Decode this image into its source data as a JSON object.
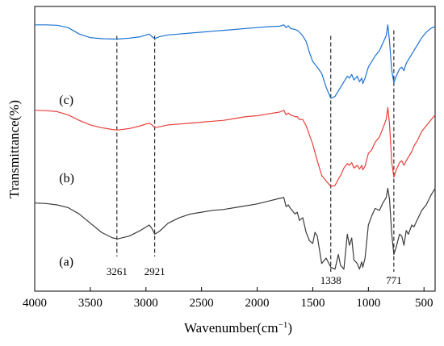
{
  "chart_data": {
    "type": "line",
    "xlabel": "Wavenumber(cm",
    "xlabel_unit_sup": "−1",
    "xlabel_close": ")",
    "ylabel": "Transmittance(%)",
    "xlim": [
      4000,
      400
    ],
    "x_reversed": true,
    "y_ticks_shown": false,
    "grid": false,
    "xticks": [
      4000,
      3500,
      3000,
      2500,
      2000,
      1500,
      1000,
      500
    ],
    "xtick_labels": [
      "4000",
      "3500",
      "3000",
      "2500",
      "2000",
      "1500",
      "1000",
      "500"
    ],
    "series": [
      {
        "name": "(a)",
        "color": "#3c3c3c",
        "label_at": [
          3780,
          10
        ],
        "points": [
          [
            4000,
            74
          ],
          [
            3900,
            73.5
          ],
          [
            3800,
            72
          ],
          [
            3700,
            69
          ],
          [
            3600,
            62
          ],
          [
            3500,
            52
          ],
          [
            3400,
            42
          ],
          [
            3300,
            36
          ],
          [
            3250,
            35
          ],
          [
            3150,
            38
          ],
          [
            3050,
            44
          ],
          [
            2970,
            50
          ],
          [
            2945,
            46
          ],
          [
            2921,
            40
          ],
          [
            2880,
            43
          ],
          [
            2800,
            52
          ],
          [
            2700,
            58
          ],
          [
            2600,
            62
          ],
          [
            2500,
            64
          ],
          [
            2400,
            66
          ],
          [
            2300,
            67
          ],
          [
            2200,
            69
          ],
          [
            2100,
            71
          ],
          [
            2000,
            73
          ],
          [
            1900,
            76
          ],
          [
            1800,
            79
          ],
          [
            1760,
            80
          ],
          [
            1740,
            70
          ],
          [
            1720,
            72
          ],
          [
            1700,
            68
          ],
          [
            1660,
            62
          ],
          [
            1640,
            64
          ],
          [
            1620,
            55
          ],
          [
            1590,
            58
          ],
          [
            1560,
            42
          ],
          [
            1530,
            33
          ],
          [
            1500,
            30
          ],
          [
            1480,
            42
          ],
          [
            1460,
            38
          ],
          [
            1420,
            8
          ],
          [
            1380,
            14
          ],
          [
            1338,
            4
          ],
          [
            1300,
            2
          ],
          [
            1270,
            18
          ],
          [
            1250,
            6
          ],
          [
            1220,
            2
          ],
          [
            1190,
            40
          ],
          [
            1170,
            28
          ],
          [
            1150,
            36
          ],
          [
            1130,
            12
          ],
          [
            1100,
            8
          ],
          [
            1080,
            2
          ],
          [
            1060,
            10
          ],
          [
            1050,
            4
          ],
          [
            1030,
            14
          ],
          [
            1000,
            50
          ],
          [
            970,
            60
          ],
          [
            940,
            68
          ],
          [
            900,
            66
          ],
          [
            870,
            74
          ],
          [
            840,
            80
          ],
          [
            825,
            90
          ],
          [
            810,
            78
          ],
          [
            790,
            40
          ],
          [
            771,
            18
          ],
          [
            750,
            26
          ],
          [
            720,
            40
          ],
          [
            700,
            38
          ],
          [
            680,
            28
          ],
          [
            660,
            44
          ],
          [
            640,
            40
          ],
          [
            610,
            50
          ],
          [
            590,
            48
          ],
          [
            560,
            56
          ],
          [
            520,
            66
          ],
          [
            480,
            72
          ],
          [
            440,
            82
          ],
          [
            400,
            90
          ]
        ]
      },
      {
        "name": "(b)",
        "color": "#e8403c",
        "label_at": [
          3780,
          101
        ],
        "points": [
          [
            4000,
            175
          ],
          [
            3900,
            174.5
          ],
          [
            3800,
            173.5
          ],
          [
            3700,
            170
          ],
          [
            3600,
            164
          ],
          [
            3500,
            159
          ],
          [
            3400,
            156
          ],
          [
            3300,
            154
          ],
          [
            3250,
            153.5
          ],
          [
            3150,
            155
          ],
          [
            3050,
            158
          ],
          [
            2970,
            161
          ],
          [
            2945,
            159
          ],
          [
            2921,
            156
          ],
          [
            2880,
            157
          ],
          [
            2800,
            159
          ],
          [
            2700,
            160
          ],
          [
            2600,
            161
          ],
          [
            2500,
            162
          ],
          [
            2400,
            163
          ],
          [
            2300,
            164
          ],
          [
            2200,
            166
          ],
          [
            2100,
            168
          ],
          [
            2000,
            169
          ],
          [
            1900,
            171
          ],
          [
            1800,
            173
          ],
          [
            1760,
            175
          ],
          [
            1740,
            170
          ],
          [
            1720,
            172
          ],
          [
            1700,
            170
          ],
          [
            1660,
            168
          ],
          [
            1640,
            168
          ],
          [
            1620,
            165
          ],
          [
            1590,
            165
          ],
          [
            1560,
            158
          ],
          [
            1530,
            148
          ],
          [
            1500,
            138
          ],
          [
            1460,
            120
          ],
          [
            1420,
            104
          ],
          [
            1380,
            98
          ],
          [
            1338,
            92
          ],
          [
            1300,
            93
          ],
          [
            1270,
            100
          ],
          [
            1250,
            104
          ],
          [
            1220,
            112
          ],
          [
            1190,
            117
          ],
          [
            1170,
            115
          ],
          [
            1150,
            118
          ],
          [
            1130,
            112
          ],
          [
            1100,
            115
          ],
          [
            1080,
            111
          ],
          [
            1060,
            115
          ],
          [
            1050,
            110
          ],
          [
            1030,
            114
          ],
          [
            1000,
            128
          ],
          [
            970,
            132
          ],
          [
            940,
            140
          ],
          [
            900,
            146
          ],
          [
            870,
            155
          ],
          [
            840,
            165
          ],
          [
            825,
            178
          ],
          [
            810,
            160
          ],
          [
            790,
            118
          ],
          [
            771,
            102
          ],
          [
            750,
            110
          ],
          [
            720,
            118
          ],
          [
            700,
            120
          ],
          [
            680,
            115
          ],
          [
            660,
            120
          ],
          [
            640,
            124
          ],
          [
            610,
            130
          ],
          [
            590,
            136
          ],
          [
            560,
            142
          ],
          [
            520,
            152
          ],
          [
            480,
            158
          ],
          [
            440,
            164
          ],
          [
            400,
            170
          ]
        ]
      },
      {
        "name": "(c)",
        "color": "#1c73d2",
        "label_at": [
          3780,
          186
        ],
        "points": [
          [
            4000,
            268
          ],
          [
            3900,
            268
          ],
          [
            3800,
            267.5
          ],
          [
            3700,
            265
          ],
          [
            3600,
            258
          ],
          [
            3500,
            254
          ],
          [
            3400,
            253
          ],
          [
            3300,
            252.5
          ],
          [
            3250,
            252.5
          ],
          [
            3150,
            253.5
          ],
          [
            3050,
            255
          ],
          [
            2970,
            258
          ],
          [
            2945,
            255
          ],
          [
            2921,
            253
          ],
          [
            2880,
            255
          ],
          [
            2800,
            257
          ],
          [
            2700,
            258
          ],
          [
            2600,
            259
          ],
          [
            2500,
            260
          ],
          [
            2400,
            261
          ],
          [
            2300,
            262
          ],
          [
            2200,
            263
          ],
          [
            2100,
            264
          ],
          [
            2000,
            265
          ],
          [
            1900,
            266
          ],
          [
            1800,
            266.5
          ],
          [
            1760,
            268
          ],
          [
            1740,
            265
          ],
          [
            1720,
            267
          ],
          [
            1700,
            264
          ],
          [
            1660,
            263
          ],
          [
            1640,
            262
          ],
          [
            1620,
            260
          ],
          [
            1590,
            256
          ],
          [
            1560,
            250
          ],
          [
            1530,
            238
          ],
          [
            1500,
            228
          ],
          [
            1460,
            222
          ],
          [
            1420,
            215
          ],
          [
            1380,
            200
          ],
          [
            1338,
            188
          ],
          [
            1300,
            190
          ],
          [
            1270,
            196
          ],
          [
            1250,
            200
          ],
          [
            1220,
            206
          ],
          [
            1190,
            212
          ],
          [
            1170,
            210
          ],
          [
            1150,
            214
          ],
          [
            1130,
            208
          ],
          [
            1100,
            212
          ],
          [
            1080,
            206
          ],
          [
            1060,
            210
          ],
          [
            1050,
            204
          ],
          [
            1030,
            210
          ],
          [
            1000,
            222
          ],
          [
            970,
            228
          ],
          [
            940,
            234
          ],
          [
            900,
            240
          ],
          [
            870,
            248
          ],
          [
            840,
            256
          ],
          [
            825,
            268
          ],
          [
            810,
            250
          ],
          [
            790,
            218
          ],
          [
            771,
            205
          ],
          [
            750,
            212
          ],
          [
            720,
            220
          ],
          [
            700,
            222
          ],
          [
            680,
            218
          ],
          [
            660,
            226
          ],
          [
            640,
            230
          ],
          [
            610,
            236
          ],
          [
            590,
            240
          ],
          [
            560,
            246
          ],
          [
            520,
            254
          ],
          [
            480,
            260
          ],
          [
            440,
            264
          ],
          [
            400,
            266
          ]
        ]
      }
    ],
    "y_range": [
      -22,
      288
    ],
    "peaks": [
      {
        "x": 3261,
        "label": "3261",
        "y_top": 256,
        "label_y_offset": 0
      },
      {
        "x": 2921,
        "label": "2921",
        "y_top": 256,
        "label_y_offset": 0
      },
      {
        "x": 1338,
        "label": "1338",
        "y_top": 256,
        "label_y_offset": 1
      },
      {
        "x": 771,
        "label": "771",
        "y_top": 262,
        "label_y_offset": 1
      }
    ]
  }
}
